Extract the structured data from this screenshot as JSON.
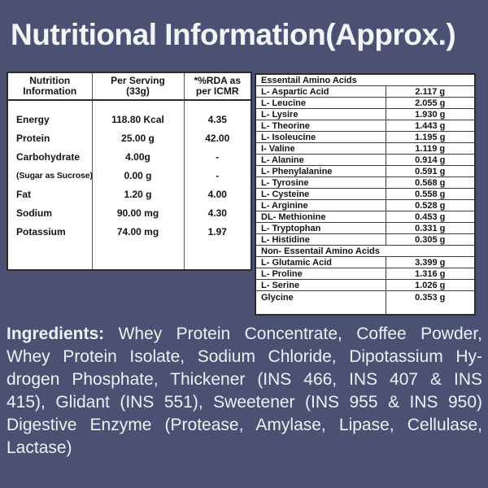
{
  "background_color": "#4a5173",
  "title": "Nutritional Information(Approx.)",
  "nutrition_table": {
    "headers": [
      "Nutrition\nInformation",
      "Per Serving\n(33g)",
      "*%RDA as\nper ICMR"
    ],
    "rows": [
      {
        "name": "Energy",
        "per_serving": "118.80 Kcal",
        "rda": "4.35"
      },
      {
        "name": "Protein",
        "per_serving": "25.00 g",
        "rda": "42.00"
      },
      {
        "name": "Carbohydrate",
        "per_serving": "4.00g",
        "rda": "-"
      },
      {
        "name": "(Sugar as Sucrose)",
        "per_serving": "0.00 g",
        "rda": "-"
      },
      {
        "name": "Fat",
        "per_serving": "1.20 g",
        "rda": "4.00"
      },
      {
        "name": "Sodium",
        "per_serving": "90.00 mg",
        "rda": "4.30"
      },
      {
        "name": "Potassium",
        "per_serving": "74.00 mg",
        "rda": "1.97"
      }
    ]
  },
  "amino_acids_table": {
    "essential_header": "Essentail Amino Acids",
    "essential_rows": [
      {
        "name": "L- Aspartic Acid",
        "amount": "2.117 g"
      },
      {
        "name": "L- Leucine",
        "amount": "2.055 g"
      },
      {
        "name": "L- Lysire",
        "amount": "1.930 g"
      },
      {
        "name": "L- Theorine",
        "amount": "1.443 g"
      },
      {
        "name": "L- Isoleucine",
        "amount": "1.195 g"
      },
      {
        "name": "I- Valine",
        "amount": "1.119 g"
      },
      {
        "name": "L- Alanine",
        "amount": "0.914 g"
      },
      {
        "name": "L- Phenylalanine",
        "amount": "0.591 g"
      },
      {
        "name": "L- Tyrosine",
        "amount": "0.568 g"
      },
      {
        "name": "L- Cysteine",
        "amount": "0.558 g"
      },
      {
        "name": "L- Arginine",
        "amount": "0.528 g"
      },
      {
        "name": "DL- Methionine",
        "amount": "0.453 g"
      },
      {
        "name": "L- Tryptophan",
        "amount": "0.331 g"
      },
      {
        "name": "L- Histidine",
        "amount": "0.305 g"
      }
    ],
    "non_essential_header": "Non- Essentail Amino Acids",
    "non_essential_rows": [
      {
        "name": "L- Glutamic Acid",
        "amount": "3.399 g"
      },
      {
        "name": "L- Proline",
        "amount": "1.316 g"
      },
      {
        "name": "L- Serine",
        "amount": "1.026 g"
      },
      {
        "name": "Glycine",
        "amount": "0.353 g"
      }
    ]
  },
  "ingredients": {
    "label": "Ingredients:",
    "line1_rest": " Whey Protein Concentrate, Coffee Powder,",
    "lines": [
      "Whey Protein Isolate, Sodium Chloride, Dipotassium Hy-",
      "drogen Phosphate, Thickener (INS 466, INS 407 & INS",
      "415), Glidant (INS 551), Sweetener (INS 955 & INS 950)",
      "Digestive Enzyme (Protease, Amylase, Lipase, Cellulase,",
      "Lactase)"
    ]
  }
}
